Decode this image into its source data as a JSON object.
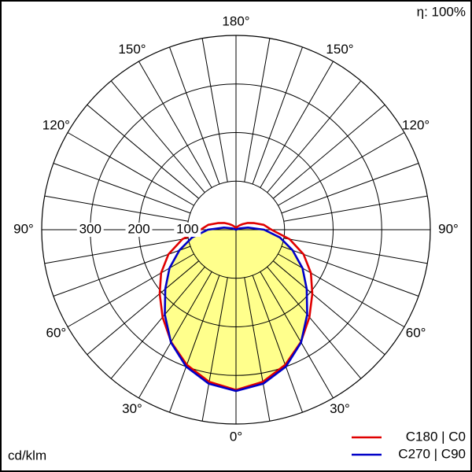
{
  "chart_data": {
    "type": "polar",
    "efficiency_label": "η: 100%",
    "unit_label": "cd/klm",
    "x": [
      0,
      10,
      20,
      30,
      40,
      50,
      60,
      70,
      80,
      90,
      100,
      110,
      120,
      130,
      140,
      150,
      160,
      170,
      180
    ],
    "xticks": [
      {
        "value": 0,
        "label": "0°"
      },
      {
        "value": 30,
        "label": "30°"
      },
      {
        "value": 60,
        "label": "60°"
      },
      {
        "value": 90,
        "label": "90°"
      },
      {
        "value": 120,
        "label": "120°"
      },
      {
        "value": 150,
        "label": "150°"
      },
      {
        "value": 180,
        "label": "180°"
      }
    ],
    "rlim": [
      0,
      400
    ],
    "rticks": [
      100,
      200,
      300
    ],
    "series": [
      {
        "name": "C180 | C0",
        "color": "#e00000",
        "values": [
          330,
          318,
          296,
          267,
          235,
          205,
          178,
          148,
          112,
          73,
          58,
          40,
          28,
          18,
          12,
          8,
          5,
          2,
          0
        ]
      },
      {
        "name": "C270 | C90",
        "color": "#0000c8",
        "fill": "#ffff8c",
        "values": [
          332,
          322,
          300,
          268,
          228,
          190,
          158,
          124,
          92,
          58,
          25,
          8,
          0,
          0,
          0,
          0,
          0,
          0,
          0
        ]
      }
    ]
  }
}
